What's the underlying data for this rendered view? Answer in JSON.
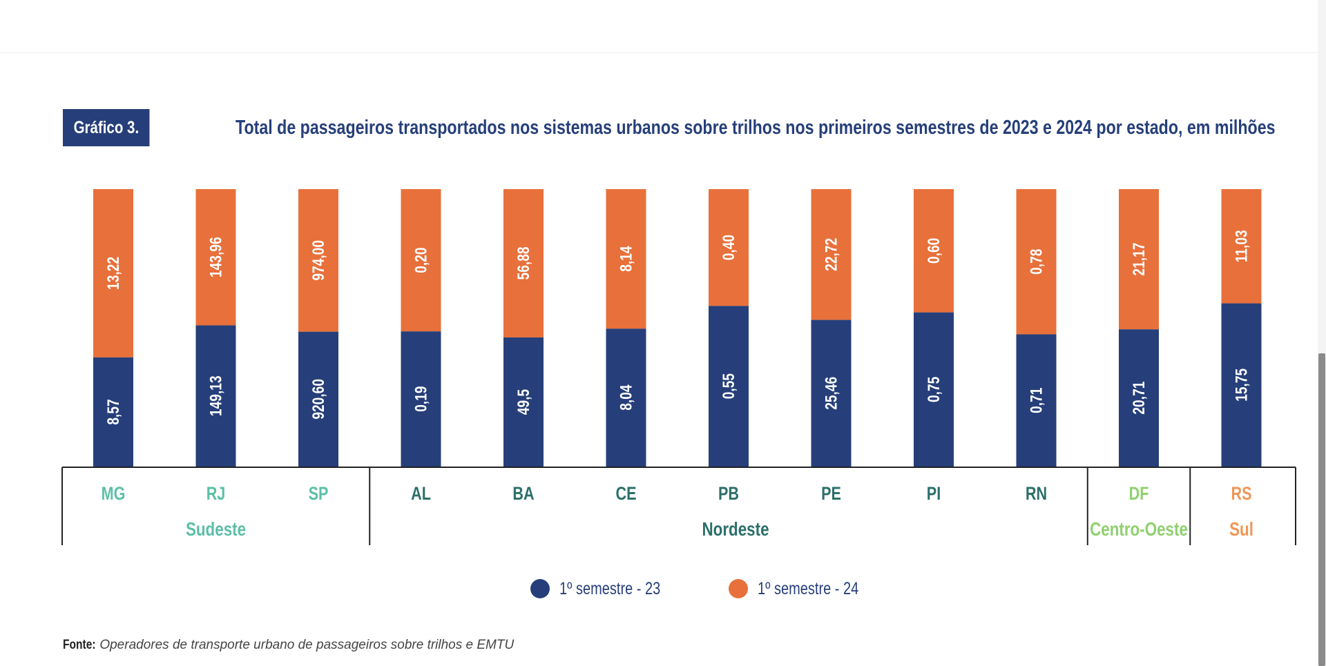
{
  "header": {
    "chart_label": "Gráfico 3.",
    "title": "Total de passageiros transportados nos sistemas urbanos sobre trilhos nos primeiros semestres de 2023 e 2024 por estado, em milhões"
  },
  "legend": {
    "items": [
      {
        "label": "1º semestre - 23",
        "color": "#263f7a"
      },
      {
        "label": "1º semestre - 24",
        "color": "#e8703a"
      }
    ]
  },
  "source": {
    "label": "Fonte:",
    "text": "Operadores de transporte urbano de passageiros sobre trilhos e EMTU"
  },
  "colors": {
    "navy": "#263f7a",
    "orange": "#e8703a",
    "sudeste": "#5cbfa6",
    "nordeste": "#2c6f6a",
    "centro_oeste": "#8fd06f",
    "sul": "#ee9757"
  },
  "chart_data": {
    "type": "bar",
    "stacked": true,
    "normalized": true,
    "title": "Total de passageiros transportados nos sistemas urbanos sobre trilhos nos primeiros semestres de 2023 e 2024 por estado, em milhões",
    "categories": [
      "MG",
      "RJ",
      "SP",
      "AL",
      "BA",
      "CE",
      "PB",
      "PE",
      "PI",
      "RN",
      "DF",
      "RS"
    ],
    "series": [
      {
        "name": "1º semestre - 23",
        "color": "#263f7a",
        "values": [
          8.57,
          149.13,
          920.6,
          0.19,
          49.5,
          8.04,
          0.55,
          25.46,
          0.75,
          0.71,
          20.71,
          15.75
        ],
        "labels": [
          "8,57",
          "149,13",
          "920,60",
          "0,19",
          "49,5",
          "8,04",
          "0,55",
          "25,46",
          "0,75",
          "0,71",
          "20,71",
          "15,75"
        ]
      },
      {
        "name": "1º semestre - 24",
        "color": "#e8703a",
        "values": [
          13.22,
          143.96,
          974.0,
          0.2,
          56.88,
          8.14,
          0.4,
          22.72,
          0.6,
          0.78,
          21.17,
          11.03
        ],
        "labels": [
          "13,22",
          "143,96",
          "974,00",
          "0,20",
          "56,88",
          "8,14",
          "0,40",
          "22,72",
          "0,60",
          "0,78",
          "21,17",
          "11,03"
        ]
      }
    ],
    "regions": [
      {
        "name": "Sudeste",
        "categories": [
          "MG",
          "RJ",
          "SP"
        ],
        "color": "#5cbfa6"
      },
      {
        "name": "Nordeste",
        "categories": [
          "AL",
          "BA",
          "CE",
          "PB",
          "PE",
          "PI",
          "RN"
        ],
        "color": "#2c6f6a"
      },
      {
        "name": "Centro-Oeste",
        "categories": [
          "DF"
        ],
        "color": "#8fd06f"
      },
      {
        "name": "Sul",
        "categories": [
          "RS"
        ],
        "color": "#ee9757"
      }
    ],
    "xlabel": "",
    "ylabel": "",
    "legend_position": "bottom-center",
    "grid": false
  }
}
